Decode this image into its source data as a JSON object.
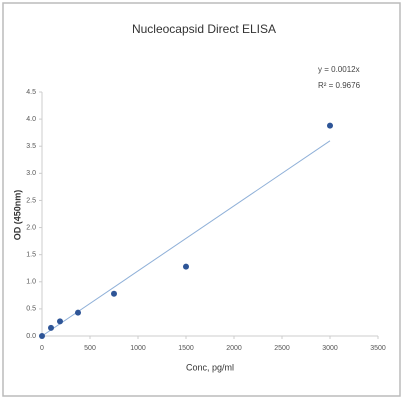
{
  "chart_data": {
    "type": "scatter",
    "title": "Nucleocapsid Direct ELISA",
    "x_label": "Conc, pg/ml",
    "y_label": "OD (450nm)",
    "annotations": [
      "y = 0.0012x",
      "R² = 0.9676"
    ],
    "series": [
      {
        "x": [
          0,
          93.75,
          187.5,
          375,
          750,
          1500,
          3000
        ],
        "values": [
          0.0,
          0.15,
          0.27,
          0.43,
          0.78,
          1.28,
          3.88
        ],
        "color": "#2e5597"
      }
    ],
    "trendline": {
      "x": [
        0,
        3000
      ],
      "values": [
        0,
        3.6
      ],
      "color": "#8fb0d8"
    },
    "xlim": [
      0,
      3500
    ],
    "xticks": [
      0,
      500,
      1000,
      1500,
      2000,
      2500,
      3000,
      3500
    ],
    "ylim": [
      0,
      4.5
    ],
    "yticks": [
      {
        "value": 0,
        "label": "0.0"
      },
      0.5,
      {
        "value": 1,
        "label": "1.0"
      },
      1.5,
      {
        "value": 2,
        "label": "2.0"
      },
      2.5,
      {
        "value": 3,
        "label": "3.0"
      },
      3.5,
      {
        "value": 4,
        "label": "4.0"
      },
      4.5
    ]
  }
}
